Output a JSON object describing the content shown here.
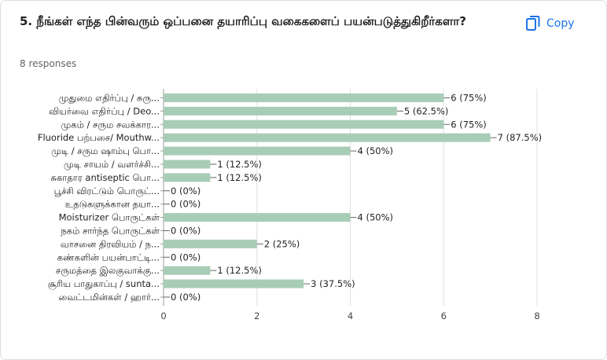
{
  "question": {
    "title": "5. நீங்கள் எந்த பின்வரும் ஒப்பனை தயாரிப்பு வகைகளைப் பயன்படுத்துகிறீர்களா?",
    "responses": "8 responses"
  },
  "copy_button": {
    "label": "Copy",
    "icon": "copy-icon"
  },
  "colors": {
    "bar": "#a8cdb6",
    "accent": "#1a73e8",
    "grid": "#e0e0e0"
  },
  "chart_data": {
    "type": "bar",
    "orientation": "horizontal",
    "categories": [
      "முதுமை எதிர்ப்பு / சுரு...",
      "வியர்வை எதிர்ப்பு / Deo...",
      "முகம் / சரும சவக்கார...",
      "Fluoride பற்பசை/ Mouthw...",
      "முடி / சரும ஷாம்பு பொ...",
      "முடி சாயம் / வளர்ச்சி...",
      "சுகாதார antiseptic பொ...",
      "பூச்சி விரட்டும் பொருட்...",
      "உதடுகளுக்கான தயா...",
      "Moisturizer பொருட்கள்",
      "நகம் சார்ந்த பொருட்கள்",
      "வாசனை திரவியம் / ந...",
      "கண்களின் பயன்பாட்டி...",
      "சருமத்தை இலகுவாக்கு...",
      "சூரிய பாதுகாப்பு / sunta...",
      "வைட்டமின்கள் / ஹார்..."
    ],
    "values": [
      6,
      5,
      6,
      7,
      4,
      1,
      1,
      0,
      0,
      4,
      0,
      2,
      0,
      1,
      3,
      0
    ],
    "data_labels": [
      "6 (75%)",
      "5 (62.5%)",
      "6 (75%)",
      "7 (87.5%)",
      "4 (50%)",
      "1 (12.5%)",
      "1 (12.5%)",
      "0 (0%)",
      "0 (0%)",
      "4 (50%)",
      "0 (0%)",
      "2 (25%)",
      "0 (0%)",
      "1 (12.5%)",
      "3 (37.5%)",
      "0 (0%)"
    ],
    "xlim": [
      0,
      8
    ],
    "xticks": [
      0,
      2,
      4,
      6,
      8
    ],
    "grid": true,
    "legend": "none"
  }
}
